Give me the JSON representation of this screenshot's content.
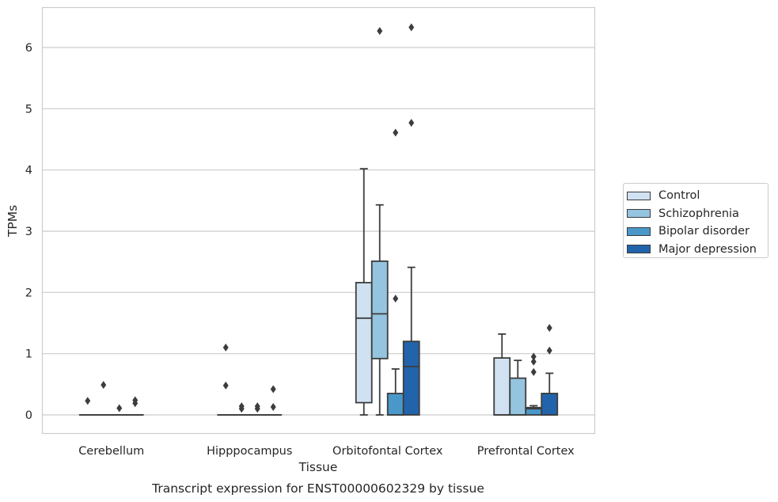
{
  "chart_data": {
    "type": "box",
    "title": "",
    "caption": "Transcript expression for ENST00000602329 by tissue",
    "xlabel": "Tissue",
    "ylabel": "TPMs",
    "ylim": [
      -0.3,
      6.65
    ],
    "yticks": [
      0,
      1,
      2,
      3,
      4,
      5,
      6
    ],
    "grid": "horizontal",
    "legend_position": "right",
    "categories": [
      "Cerebellum",
      "Hipppocampus",
      "Orbitofontal Cortex",
      "Prefrontal Cortex"
    ],
    "series": [
      {
        "name": "Control",
        "color": "#d0e1f2",
        "boxes": [
          {
            "q1": 0,
            "median": 0,
            "q3": 0,
            "whisker_low": 0,
            "whisker_high": 0,
            "outliers": [
              0.23
            ]
          },
          {
            "q1": 0,
            "median": 0,
            "q3": 0,
            "whisker_low": 0,
            "whisker_high": 0,
            "outliers": [
              1.1,
              0.48
            ]
          },
          {
            "q1": 0.2,
            "median": 1.58,
            "q3": 2.16,
            "whisker_low": 0,
            "whisker_high": 4.02,
            "outliers": []
          },
          {
            "q1": 0,
            "median": 0,
            "q3": 0.93,
            "whisker_low": 0,
            "whisker_high": 1.32,
            "outliers": []
          }
        ]
      },
      {
        "name": "Schizophrenia",
        "color": "#94c4df",
        "boxes": [
          {
            "q1": 0,
            "median": 0,
            "q3": 0,
            "whisker_low": 0,
            "whisker_high": 0,
            "outliers": [
              0.49
            ]
          },
          {
            "q1": 0,
            "median": 0,
            "q3": 0,
            "whisker_low": 0,
            "whisker_high": 0,
            "outliers": [
              0.14,
              0.1
            ]
          },
          {
            "q1": 0.92,
            "median": 1.65,
            "q3": 2.51,
            "whisker_low": 0,
            "whisker_high": 3.43,
            "outliers": [
              6.27
            ]
          },
          {
            "q1": 0,
            "median": 0,
            "q3": 0.6,
            "whisker_low": 0,
            "whisker_high": 0.89,
            "outliers": []
          }
        ]
      },
      {
        "name": "Bipolar disorder",
        "color": "#4a98c9",
        "boxes": [
          {
            "q1": 0,
            "median": 0,
            "q3": 0,
            "whisker_low": 0,
            "whisker_high": 0,
            "outliers": [
              0.11
            ]
          },
          {
            "q1": 0,
            "median": 0,
            "q3": 0,
            "whisker_low": 0,
            "whisker_high": 0,
            "outliers": [
              0.14,
              0.1
            ]
          },
          {
            "q1": 0,
            "median": 0,
            "q3": 0.35,
            "whisker_low": 0,
            "whisker_high": 0.75,
            "outliers": [
              4.61,
              1.9
            ]
          },
          {
            "q1": 0,
            "median": 0.1,
            "q3": 0.12,
            "whisker_low": 0,
            "whisker_high": 0.15,
            "outliers": [
              0.95,
              0.87,
              0.7
            ]
          }
        ]
      },
      {
        "name": "Major depression",
        "color": "#2164ab",
        "boxes": [
          {
            "q1": 0,
            "median": 0,
            "q3": 0,
            "whisker_low": 0,
            "whisker_high": 0,
            "outliers": [
              0.24,
              0.19
            ]
          },
          {
            "q1": 0,
            "median": 0,
            "q3": 0,
            "whisker_low": 0,
            "whisker_high": 0,
            "outliers": [
              0.42,
              0.13
            ]
          },
          {
            "q1": 0,
            "median": 0.79,
            "q3": 1.2,
            "whisker_low": 0,
            "whisker_high": 2.41,
            "outliers": [
              6.33,
              4.77
            ]
          },
          {
            "q1": 0,
            "median": 0,
            "q3": 0.35,
            "whisker_low": 0,
            "whisker_high": 0.68,
            "outliers": [
              1.42,
              1.05
            ]
          }
        ]
      }
    ]
  }
}
